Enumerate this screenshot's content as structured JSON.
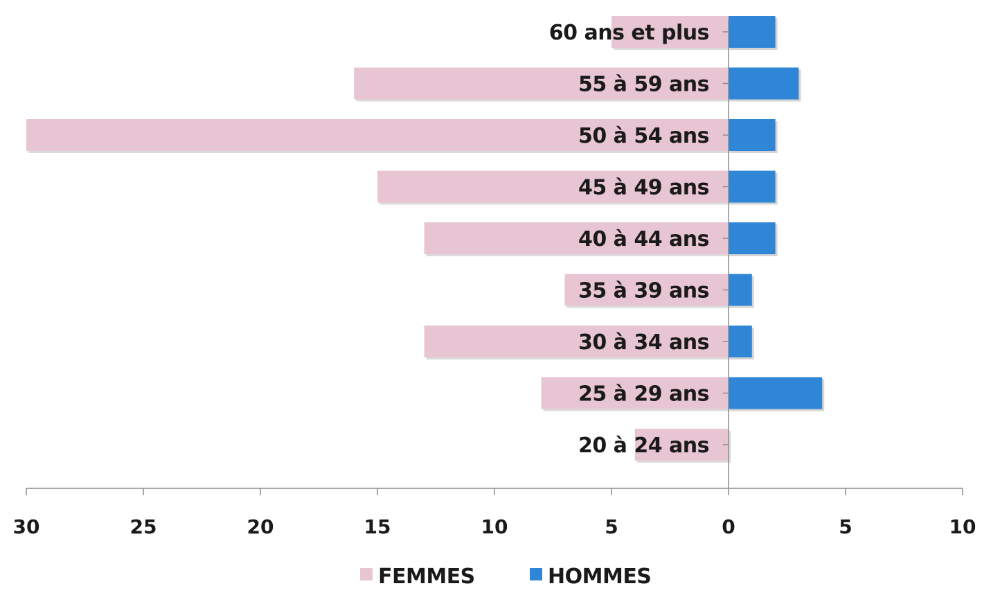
{
  "chart_data": {
    "type": "bar",
    "orientation": "horizontal",
    "layout": "population-pyramid",
    "categories": [
      "20 à 24 ans",
      "25 à 29 ans",
      "30 à 34 ans",
      "35 à 39 ans",
      "40 à 44 ans",
      "45 à 49 ans",
      "50 à 54 ans",
      "55 à 59 ans",
      "60 ans et plus"
    ],
    "series": [
      {
        "name": "FEMMES",
        "color": "#e8c5d3",
        "direction": "left",
        "values": [
          4,
          8,
          13,
          7,
          13,
          15,
          30,
          16,
          5
        ]
      },
      {
        "name": "HOMMES",
        "color": "#2f86d6",
        "direction": "right",
        "values": [
          0,
          4,
          1,
          1,
          2,
          2,
          2,
          3,
          2
        ]
      }
    ],
    "title": "",
    "xlabel": "",
    "ylabel": "",
    "x_left_range": [
      0,
      30
    ],
    "x_right_range": [
      0,
      10
    ],
    "tick_labels": [
      "30",
      "25",
      "20",
      "15",
      "10",
      "5",
      "0",
      "5",
      "10"
    ],
    "grid": false,
    "legend_position": "bottom-center"
  }
}
